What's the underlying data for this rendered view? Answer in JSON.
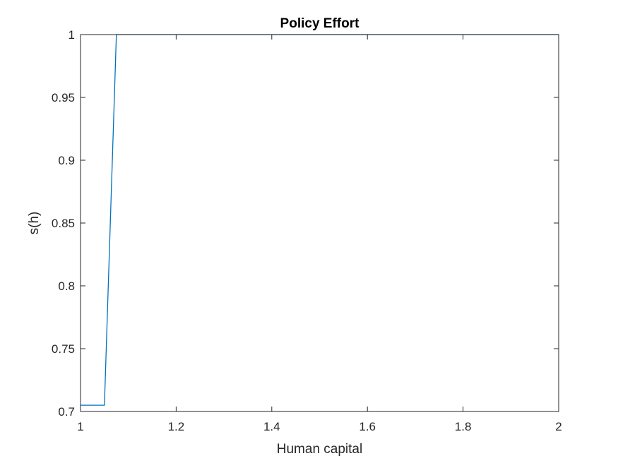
{
  "chart_data": {
    "type": "line",
    "title": "Policy Effort",
    "xlabel": "Human capital",
    "ylabel": "s(h)",
    "xlim": [
      1,
      2
    ],
    "ylim": [
      0.7,
      1
    ],
    "xticks": [
      1,
      1.2,
      1.4,
      1.6,
      1.8,
      2
    ],
    "xtick_labels": [
      "1",
      "1.2",
      "1.4",
      "1.6",
      "1.8",
      "2"
    ],
    "yticks": [
      0.7,
      0.75,
      0.8,
      0.85,
      0.9,
      0.95,
      1
    ],
    "ytick_labels": [
      "0.7",
      "0.75",
      "0.8",
      "0.85",
      "0.9",
      "0.95",
      "1"
    ],
    "grid": false,
    "series": [
      {
        "color": "#0072BD",
        "x": [
          1,
          1.05,
          1.075,
          2
        ],
        "y": [
          0.705,
          0.705,
          1.0,
          1.0
        ]
      }
    ]
  }
}
